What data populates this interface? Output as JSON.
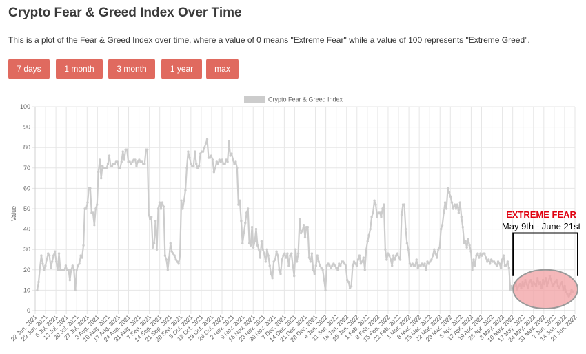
{
  "header": {
    "title": "Crypto Fear & Greed Index Over Time",
    "description": "This is a plot of the Fear & Greed Index over time, where a value of 0 means \"Extreme Fear\" while a value of 100 represents \"Extreme Greed\"."
  },
  "range_buttons": [
    {
      "label": "7 days"
    },
    {
      "label": "1 month"
    },
    {
      "label": "3 month"
    },
    {
      "label": "1 year"
    },
    {
      "label": "max"
    }
  ],
  "annotation": {
    "heading": "EXTREME FEAR",
    "subheading": "May 9th - June 21st",
    "color": "#e0000f",
    "fill": "#f2a0a3"
  },
  "colors": {
    "button": "#e06a5f",
    "series": "#cccccc",
    "grid": "#e6e6e6"
  },
  "chart_data": {
    "type": "line",
    "title": "",
    "xlabel": "",
    "ylabel": "Value",
    "ylim": [
      0,
      100
    ],
    "yticks": [
      0,
      10,
      20,
      30,
      40,
      50,
      60,
      70,
      80,
      90,
      100
    ],
    "grid": true,
    "legend_position": "top-center",
    "x_ticks": [
      "22 Jun. 2021",
      "29 Jun. 2021",
      "6 Jul. 2021",
      "13 Jul. 2021",
      "20 Jul. 2021",
      "27 Jul. 2021",
      "3 Aug. 2021",
      "10 Aug. 2021",
      "17 Aug. 2021",
      "24 Aug. 2021",
      "31 Aug. 2021",
      "7 Sep. 2021",
      "14 Sep. 2021",
      "21 Sep. 2021",
      "28 Sep. 2021",
      "5 Oct. 2021",
      "12 Oct. 2021",
      "19 Oct. 2021",
      "26 Oct. 2021",
      "2 Nov. 2021",
      "9 Nov. 2021",
      "16 Nov. 2021",
      "23 Nov. 2021",
      "30 Nov. 2021",
      "7 Dec. 2021",
      "14 Dec. 2021",
      "21 Dec. 2021",
      "28 Dec. 2021",
      "4 Jan. 2022",
      "11 Jan. 2022",
      "18 Jan. 2022",
      "25 Jan. 2022",
      "1 Feb. 2022",
      "8 Feb. 2022",
      "15 Feb. 2022",
      "22 Feb. 2022",
      "1 Mar. 2022",
      "8 Mar. 2022",
      "15 Mar. 2022",
      "22 Mar. 2022",
      "29 Mar. 2022",
      "5 Apr. 2022",
      "12 Apr. 2022",
      "19 Apr. 2022",
      "26 Apr. 2022",
      "3 May. 2022",
      "10 May. 2022",
      "17 May. 2022",
      "24 May. 2022",
      "31 May. 2022",
      "7 Jun. 2022",
      "14 Jun. 2022",
      "21 Jun. 2022"
    ],
    "series": [
      {
        "name": "Crypto Fear & Greed Index",
        "color": "#cccccc",
        "values": [
          10,
          14,
          21,
          27,
          23,
          20,
          22,
          25,
          28,
          27,
          21,
          24,
          27,
          29,
          24,
          20,
          28,
          20,
          20,
          20,
          20,
          22,
          20,
          20,
          15,
          20,
          22,
          20,
          10,
          20,
          22,
          23,
          27,
          26,
          32,
          50,
          50,
          53,
          60,
          60,
          48,
          48,
          42,
          50,
          52,
          68,
          74,
          65,
          71,
          70,
          70,
          70,
          72,
          76,
          71,
          71,
          72,
          72,
          73,
          73,
          70,
          70,
          73,
          78,
          74,
          79,
          79,
          73,
          73,
          72,
          73,
          74,
          74,
          71,
          73,
          74,
          73,
          73,
          72,
          72,
          79,
          79,
          47,
          45,
          46,
          31,
          33,
          44,
          30,
          50,
          53,
          50,
          53,
          51,
          27,
          25,
          20,
          26,
          33,
          29,
          28,
          27,
          25,
          24,
          23,
          27,
          54,
          50,
          54,
          59,
          70,
          78,
          75,
          72,
          71,
          71,
          78,
          72,
          70,
          71,
          77,
          78,
          78,
          80,
          82,
          84,
          75,
          75,
          76,
          74,
          68,
          70,
          73,
          72,
          74,
          73,
          74,
          72,
          72,
          74,
          73,
          83,
          76,
          77,
          74,
          72,
          73,
          70,
          52,
          54,
          44,
          33,
          38,
          43,
          48,
          50,
          33,
          32,
          41,
          31,
          34,
          40,
          32,
          30,
          26,
          34,
          30,
          28,
          24,
          30,
          27,
          22,
          18,
          16,
          24,
          25,
          29,
          27,
          20,
          18,
          25,
          27,
          28,
          26,
          28,
          22,
          27,
          28,
          22,
          17,
          30,
          24,
          28,
          45,
          38,
          39,
          42,
          36,
          41,
          41,
          26,
          24,
          28,
          20,
          18,
          22,
          27,
          24,
          22,
          21,
          20,
          15,
          10,
          22,
          23,
          22,
          21,
          22,
          23,
          22,
          21,
          20,
          23,
          22,
          24,
          24,
          23,
          22,
          15,
          14,
          11,
          12,
          22,
          24,
          23,
          22,
          25,
          27,
          23,
          24,
          26,
          20,
          30,
          34,
          37,
          40,
          46,
          48,
          54,
          52,
          46,
          48,
          48,
          46,
          50,
          52,
          30,
          25,
          28,
          27,
          25,
          22,
          27,
          25,
          27,
          28,
          26,
          25,
          47,
          52,
          52,
          40,
          33,
          30,
          23,
          22,
          23,
          22,
          22,
          25,
          21,
          22,
          22,
          23,
          22,
          23,
          20,
          24,
          23,
          24,
          25,
          27,
          30,
          28,
          26,
          30,
          31,
          40,
          42,
          48,
          53,
          50,
          60,
          58,
          56,
          53,
          50,
          52,
          50,
          52,
          48,
          53,
          46,
          41,
          33,
          34,
          31,
          35,
          32,
          29,
          20,
          25,
          22,
          27,
          28,
          26,
          28,
          27,
          28,
          28,
          26,
          24,
          25,
          23,
          25,
          24,
          24,
          23,
          22,
          24,
          23,
          21,
          25,
          27,
          22,
          22,
          24,
          21,
          10,
          12,
          11,
          12,
          14,
          10,
          12,
          13,
          11,
          14,
          12,
          15,
          13,
          11,
          14,
          15,
          12,
          14,
          13,
          12,
          16,
          13,
          14,
          11,
          15,
          13,
          16,
          12,
          14,
          17,
          15,
          12,
          13,
          14,
          15,
          12,
          11,
          13,
          14,
          10,
          12,
          9,
          8,
          7,
          8,
          10,
          9
        ]
      }
    ]
  }
}
